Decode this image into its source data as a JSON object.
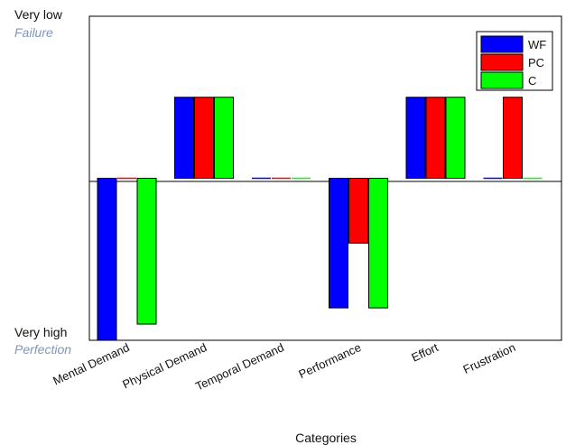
{
  "chart_data": {
    "type": "bar",
    "categories": [
      "Mental Demand",
      "Physical Demand",
      "Temporal Demand",
      "Performance",
      "Effort",
      "Frustration"
    ],
    "series": [
      {
        "name": "WF",
        "color": "#0000ff",
        "values": [
          -1.0,
          0.5,
          0.0,
          -0.8,
          0.5,
          0.0
        ]
      },
      {
        "name": "PC",
        "color": "#ff0000",
        "values": [
          0.0,
          0.5,
          0.0,
          -0.4,
          0.5,
          0.5
        ]
      },
      {
        "name": "C",
        "color": "#00ff00",
        "values": [
          -0.9,
          0.5,
          0.0,
          -0.8,
          0.5,
          0.0
        ]
      }
    ],
    "xlabel": "Categories",
    "ylabel": "",
    "ylim": [
      -1,
      1
    ],
    "y_top_label": "Very low",
    "y_top_sublabel": "Failure",
    "y_bottom_label": "Very high",
    "y_bottom_sublabel": "Perfection",
    "legend_placement": "top-right",
    "grid": false
  }
}
